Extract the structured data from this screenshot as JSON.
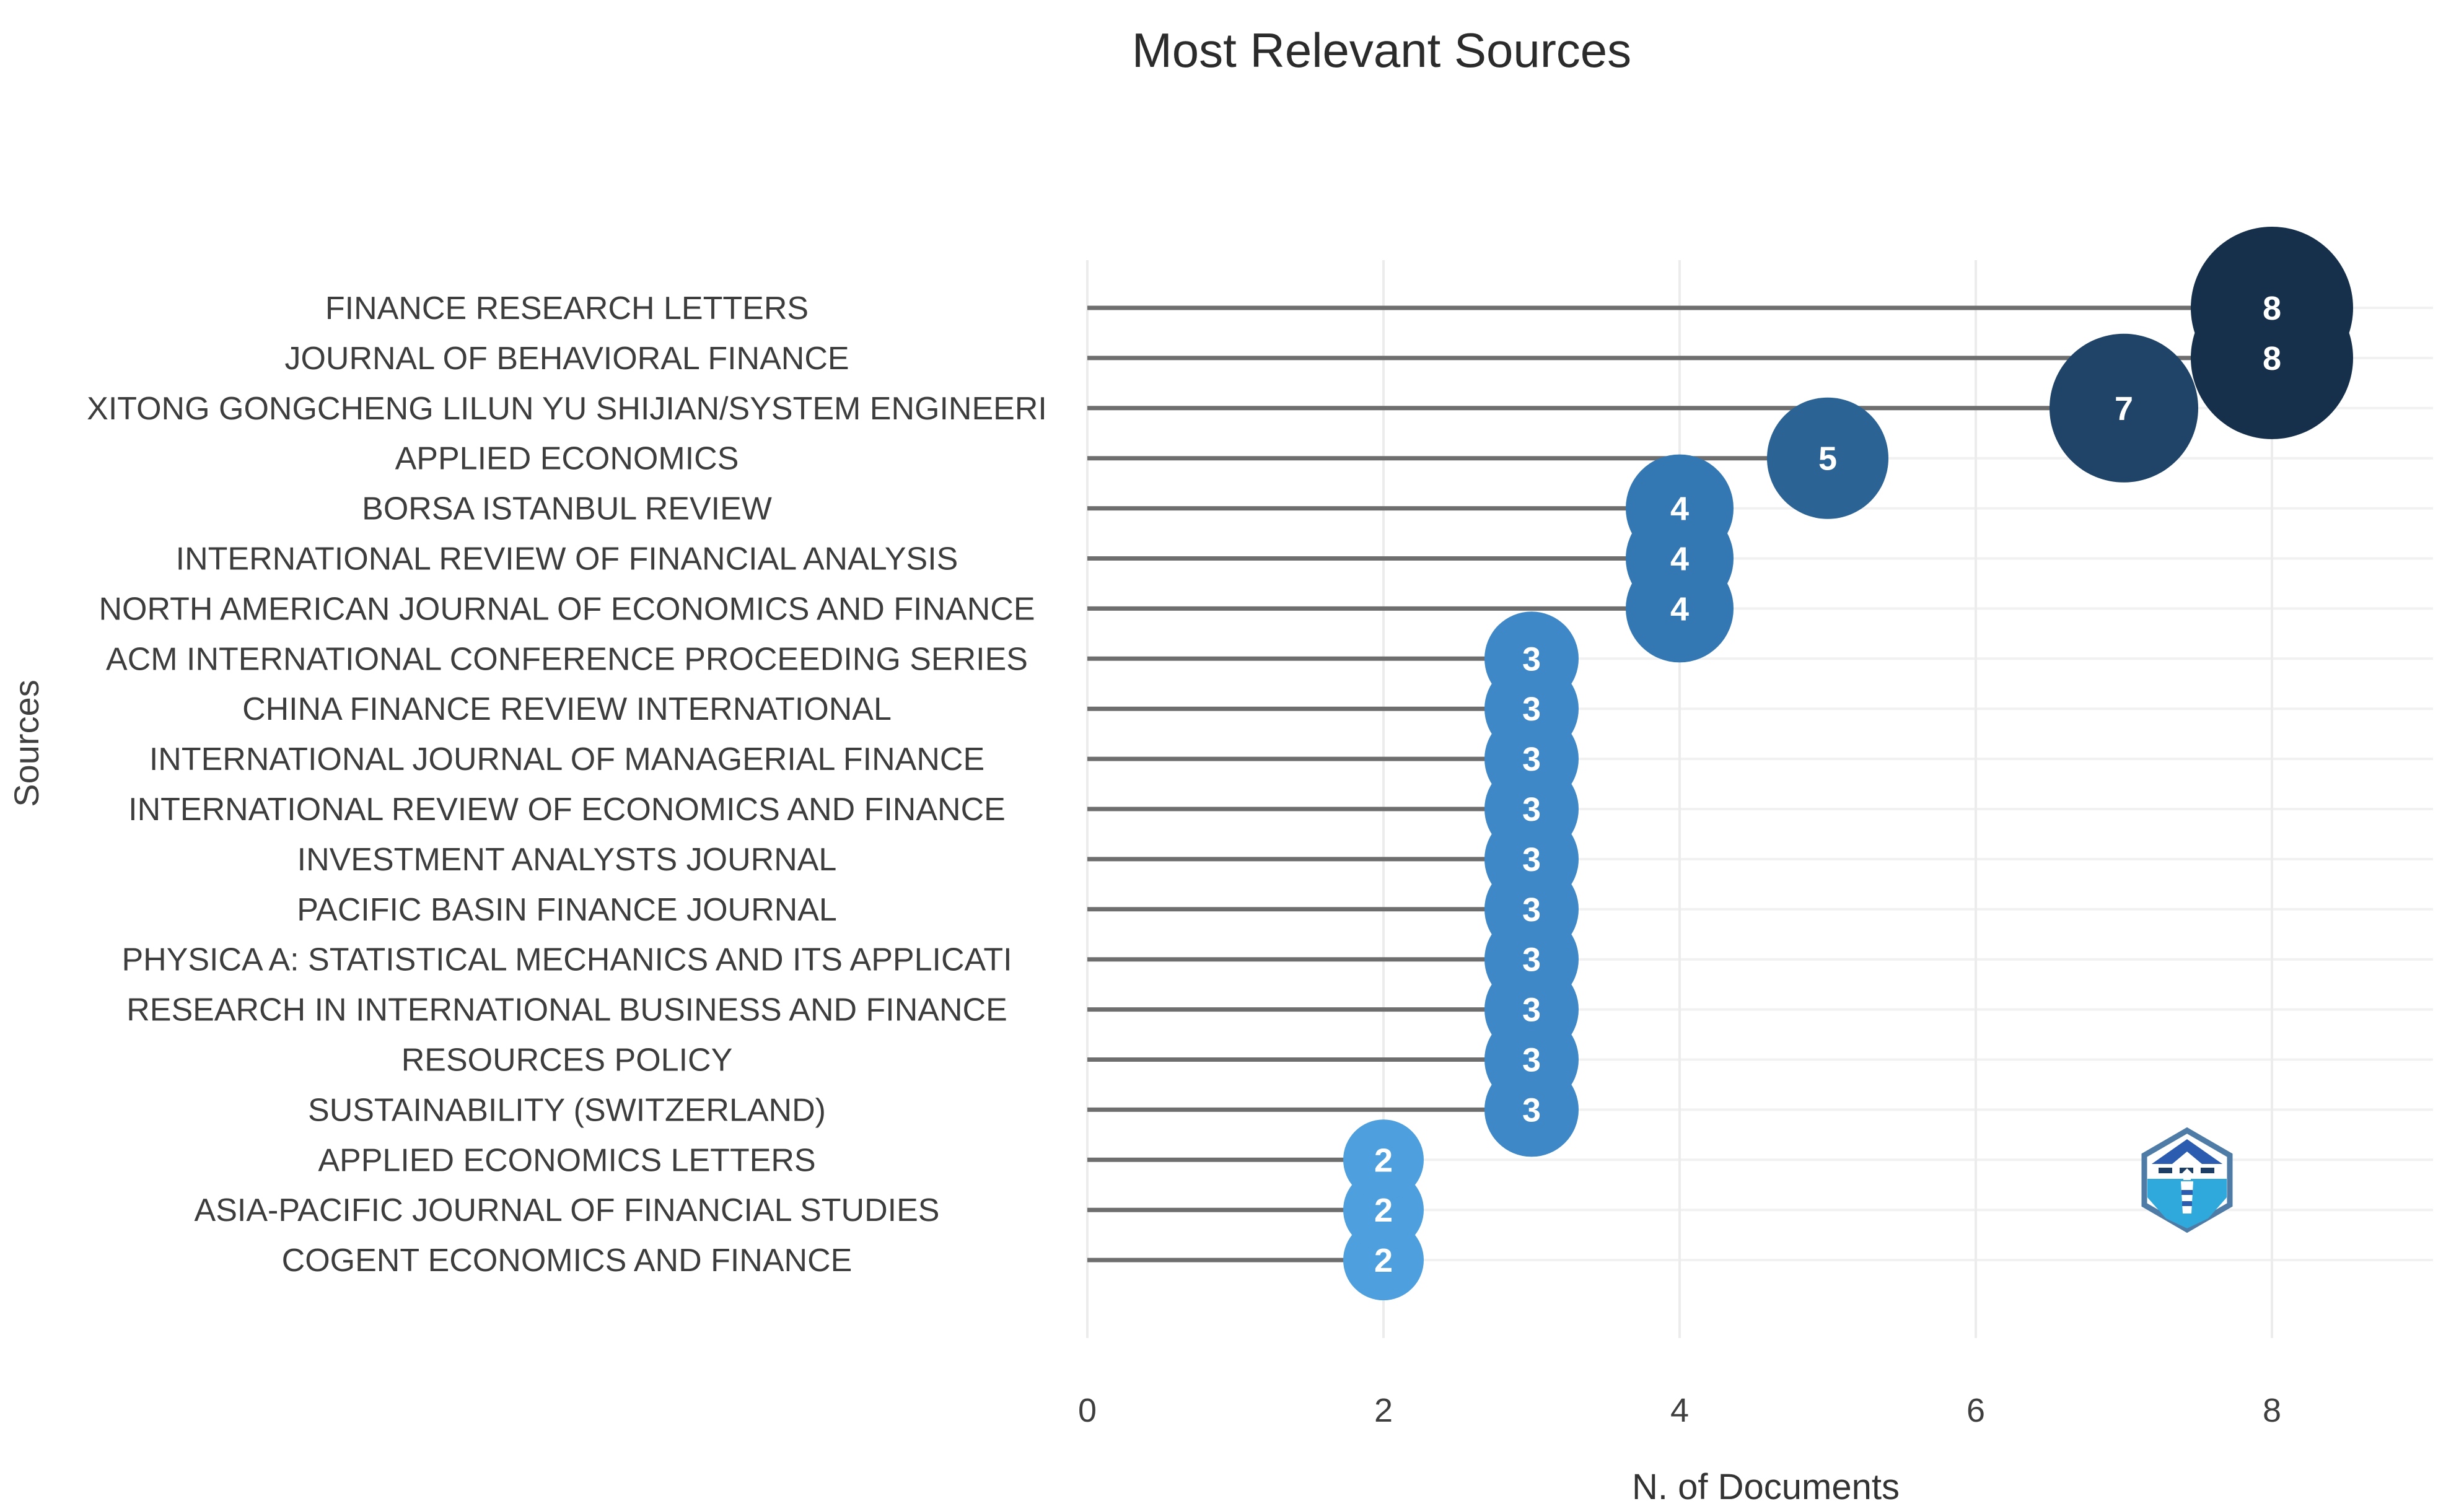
{
  "title": "Most Relevant Sources",
  "x_axis": {
    "label": "N. of Documents",
    "ticks": [
      "0",
      "2",
      "4",
      "6",
      "8"
    ]
  },
  "y_axis": {
    "label": "Sources"
  },
  "chart_data": {
    "type": "scatter",
    "subtype": "lollipop-bubble",
    "title": "Most Relevant Sources",
    "xlabel": "N. of Documents",
    "ylabel": "Sources",
    "xlim": [
      0,
      9
    ],
    "grid": true,
    "legend": false,
    "categories": [
      "FINANCE RESEARCH LETTERS",
      "JOURNAL OF BEHAVIORAL FINANCE",
      "XITONG GONGCHENG LILUN YU SHIJIAN/SYSTEM ENGINEERI",
      "APPLIED ECONOMICS",
      "BORSA ISTANBUL REVIEW",
      "INTERNATIONAL REVIEW OF FINANCIAL ANALYSIS",
      "NORTH AMERICAN JOURNAL OF ECONOMICS AND FINANCE",
      "ACM INTERNATIONAL CONFERENCE PROCEEDING SERIES",
      "CHINA FINANCE REVIEW INTERNATIONAL",
      "INTERNATIONAL JOURNAL OF MANAGERIAL FINANCE",
      "INTERNATIONAL REVIEW OF ECONOMICS AND FINANCE",
      "INVESTMENT ANALYSTS JOURNAL",
      "PACIFIC BASIN FINANCE JOURNAL",
      "PHYSICA A: STATISTICAL MECHANICS AND ITS APPLICATI",
      "RESEARCH IN INTERNATIONAL BUSINESS AND FINANCE",
      "RESOURCES POLICY",
      "SUSTAINABILITY (SWITZERLAND)",
      "APPLIED ECONOMICS LETTERS",
      "ASIA-PACIFIC JOURNAL OF FINANCIAL STUDIES",
      "COGENT ECONOMICS AND FINANCE"
    ],
    "values": [
      8,
      8,
      7,
      5,
      4,
      4,
      4,
      3,
      3,
      3,
      3,
      3,
      3,
      3,
      3,
      3,
      3,
      2,
      2,
      2
    ]
  },
  "style": {
    "value_colors": {
      "2": "#4d9fdd",
      "3": "#3e88c8",
      "4": "#3478b3",
      "5": "#2b6394",
      "7": "#1f4467",
      "8": "#16304b"
    },
    "bubble_text_color": "#ffffff",
    "stem_color": "#6e6e6e",
    "hgrid_color": "#f1f1f1",
    "vgrid_color": "#ececec",
    "label_color": "#3d3d3d",
    "tick_color": "#3f3f3f"
  },
  "logo": {
    "name": "bibliometrix-logo",
    "colors": {
      "border": "#4e7ca6",
      "roof": "#2b5cb0",
      "sea": "#2fa9dc",
      "tower": "#ffffff",
      "text_marks": "#1d3f66"
    }
  }
}
